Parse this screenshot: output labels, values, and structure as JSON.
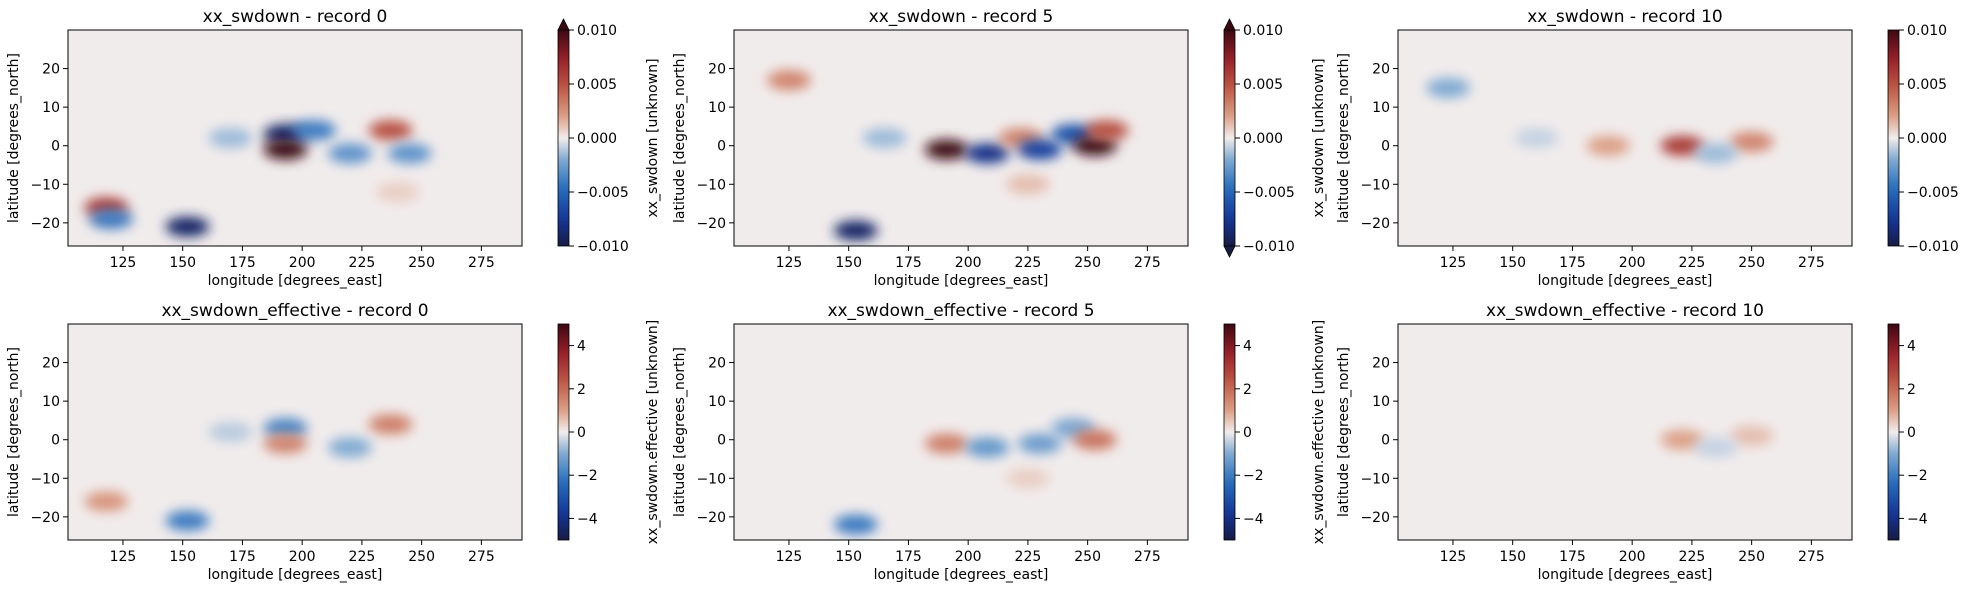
{
  "chart_data": [
    {
      "type": "heatmap",
      "title": "xx_swdown - record 0",
      "xlabel": "longitude [degrees_east]",
      "ylabel": "latitude [degrees_north]",
      "colorbar_label": "xx_swdown [unknown]",
      "xlim": [
        102,
        292
      ],
      "ylim": [
        -26,
        30
      ],
      "xticks": [
        125,
        150,
        175,
        200,
        225,
        250,
        275
      ],
      "yticks": [
        -20,
        -10,
        0,
        10,
        20
      ],
      "clim": [
        -0.01,
        0.01
      ],
      "cticks": [
        -0.01,
        -0.005,
        0.0,
        0.005,
        0.01
      ],
      "ctick_labels": [
        "−0.010",
        "−0.005",
        "0.000",
        "0.005",
        "0.010"
      ],
      "extend": "max",
      "colormap": "balance",
      "features": [
        {
          "lon": 193,
          "lat": 3,
          "value": -0.009
        },
        {
          "lon": 193,
          "lat": -1,
          "value": 0.01
        },
        {
          "lon": 205,
          "lat": 4,
          "value": -0.004
        },
        {
          "lon": 237,
          "lat": 4,
          "value": 0.005
        },
        {
          "lon": 220,
          "lat": -2,
          "value": -0.003
        },
        {
          "lon": 245,
          "lat": -2,
          "value": -0.003
        },
        {
          "lon": 152,
          "lat": -21,
          "value": -0.009
        },
        {
          "lon": 118,
          "lat": -16,
          "value": 0.006
        },
        {
          "lon": 120,
          "lat": -19,
          "value": -0.004
        },
        {
          "lon": 170,
          "lat": 2,
          "value": -0.0015
        },
        {
          "lon": 240,
          "lat": -12,
          "value": 0.0008
        }
      ]
    },
    {
      "type": "heatmap",
      "title": "xx_swdown - record 5",
      "xlabel": "longitude [degrees_east]",
      "ylabel": "latitude [degrees_north]",
      "colorbar_label": "xx_swdown [unknown]",
      "xlim": [
        102,
        292
      ],
      "ylim": [
        -26,
        30
      ],
      "xticks": [
        125,
        150,
        175,
        200,
        225,
        250,
        275
      ],
      "yticks": [
        -20,
        -10,
        0,
        10,
        20
      ],
      "clim": [
        -0.01,
        0.01
      ],
      "cticks": [
        -0.01,
        -0.005,
        0.0,
        0.005,
        0.01
      ],
      "ctick_labels": [
        "−0.010",
        "−0.005",
        "0.000",
        "0.005",
        "0.010"
      ],
      "extend": "both",
      "colormap": "balance",
      "features": [
        {
          "lon": 191,
          "lat": -1,
          "value": 0.01
        },
        {
          "lon": 208,
          "lat": -2,
          "value": -0.008
        },
        {
          "lon": 222,
          "lat": 2,
          "value": 0.003
        },
        {
          "lon": 230,
          "lat": -1,
          "value": -0.007
        },
        {
          "lon": 244,
          "lat": 3,
          "value": -0.006
        },
        {
          "lon": 253,
          "lat": 0,
          "value": 0.01
        },
        {
          "lon": 258,
          "lat": 4,
          "value": 0.005
        },
        {
          "lon": 153,
          "lat": -22,
          "value": -0.009
        },
        {
          "lon": 125,
          "lat": 17,
          "value": 0.003
        },
        {
          "lon": 225,
          "lat": -10,
          "value": 0.0012
        },
        {
          "lon": 165,
          "lat": 2,
          "value": -0.0015
        }
      ]
    },
    {
      "type": "heatmap",
      "title": "xx_swdown - record 10",
      "xlabel": "longitude [degrees_east]",
      "ylabel": "latitude [degrees_north]",
      "colorbar_label": "xx_swdown [unknown]",
      "xlim": [
        102,
        292
      ],
      "ylim": [
        -26,
        30
      ],
      "xticks": [
        125,
        150,
        175,
        200,
        225,
        250,
        275
      ],
      "yticks": [
        -20,
        -10,
        0,
        10,
        20
      ],
      "clim": [
        -0.01,
        0.01
      ],
      "cticks": [
        -0.01,
        -0.005,
        0.0,
        0.005,
        0.01
      ],
      "ctick_labels": [
        "−0.010",
        "−0.005",
        "0.000",
        "0.005",
        "0.010"
      ],
      "extend": "neither",
      "colormap": "balance",
      "features": [
        {
          "lon": 221,
          "lat": 0,
          "value": 0.006
        },
        {
          "lon": 250,
          "lat": 1,
          "value": 0.003
        },
        {
          "lon": 190,
          "lat": 0,
          "value": 0.002
        },
        {
          "lon": 235,
          "lat": -2,
          "value": -0.0015
        },
        {
          "lon": 123,
          "lat": 15,
          "value": -0.002
        },
        {
          "lon": 160,
          "lat": 2,
          "value": -0.0008
        }
      ]
    },
    {
      "type": "heatmap",
      "title": "xx_swdown_effective - record 0",
      "xlabel": "longitude [degrees_east]",
      "ylabel": "latitude [degrees_north]",
      "colorbar_label": "xx_swdown.effective [unknown]",
      "xlim": [
        102,
        292
      ],
      "ylim": [
        -26,
        30
      ],
      "xticks": [
        125,
        150,
        175,
        200,
        225,
        250,
        275
      ],
      "yticks": [
        -20,
        -10,
        0,
        10,
        20
      ],
      "clim": [
        -5,
        5
      ],
      "cticks": [
        -4,
        -2,
        0,
        2,
        4
      ],
      "ctick_labels": [
        "−4",
        "−2",
        "0",
        "2",
        "4"
      ],
      "extend": "neither",
      "colormap": "balance",
      "features": [
        {
          "lon": 193,
          "lat": 3,
          "value": -1.8
        },
        {
          "lon": 193,
          "lat": -1,
          "value": 1.5
        },
        {
          "lon": 237,
          "lat": 4,
          "value": 1.6
        },
        {
          "lon": 220,
          "lat": -2,
          "value": -1.0
        },
        {
          "lon": 152,
          "lat": -21,
          "value": -2.0
        },
        {
          "lon": 118,
          "lat": -16,
          "value": 1.2
        },
        {
          "lon": 170,
          "lat": 2,
          "value": -0.5
        }
      ]
    },
    {
      "type": "heatmap",
      "title": "xx_swdown_effective - record 5",
      "xlabel": "longitude [degrees_east]",
      "ylabel": "latitude [degrees_north]",
      "colorbar_label": "xx_swdown.effective [unknown]",
      "xlim": [
        102,
        292
      ],
      "ylim": [
        -26,
        30
      ],
      "xticks": [
        125,
        150,
        175,
        200,
        225,
        250,
        275
      ],
      "yticks": [
        -20,
        -10,
        0,
        10,
        20
      ],
      "clim": [
        -5,
        5
      ],
      "cticks": [
        -4,
        -2,
        0,
        2,
        4
      ],
      "ctick_labels": [
        "−4",
        "−2",
        "0",
        "2",
        "4"
      ],
      "extend": "neither",
      "colormap": "balance",
      "features": [
        {
          "lon": 191,
          "lat": -1,
          "value": 1.6
        },
        {
          "lon": 208,
          "lat": -2,
          "value": -1.4
        },
        {
          "lon": 230,
          "lat": -1,
          "value": -1.3
        },
        {
          "lon": 244,
          "lat": 3,
          "value": -1.1
        },
        {
          "lon": 253,
          "lat": 0,
          "value": 1.8
        },
        {
          "lon": 153,
          "lat": -22,
          "value": -2.0
        },
        {
          "lon": 225,
          "lat": -10,
          "value": 0.4
        }
      ]
    },
    {
      "type": "heatmap",
      "title": "xx_swdown_effective - record 10",
      "xlabel": "longitude [degrees_east]",
      "ylabel": "latitude [degrees_north]",
      "colorbar_label": "xx_swdown.effective [unknown]",
      "xlim": [
        102,
        292
      ],
      "ylim": [
        -26,
        30
      ],
      "xticks": [
        125,
        150,
        175,
        200,
        225,
        250,
        275
      ],
      "yticks": [
        -20,
        -10,
        0,
        10,
        20
      ],
      "clim": [
        -5,
        5
      ],
      "cticks": [
        -4,
        -2,
        0,
        2,
        4
      ],
      "ctick_labels": [
        "−4",
        "−2",
        "0",
        "2",
        "4"
      ],
      "extend": "neither",
      "colormap": "balance",
      "features": [
        {
          "lon": 221,
          "lat": 0,
          "value": 1.0
        },
        {
          "lon": 250,
          "lat": 1,
          "value": 0.6
        },
        {
          "lon": 235,
          "lat": -2,
          "value": -0.4
        }
      ]
    }
  ]
}
